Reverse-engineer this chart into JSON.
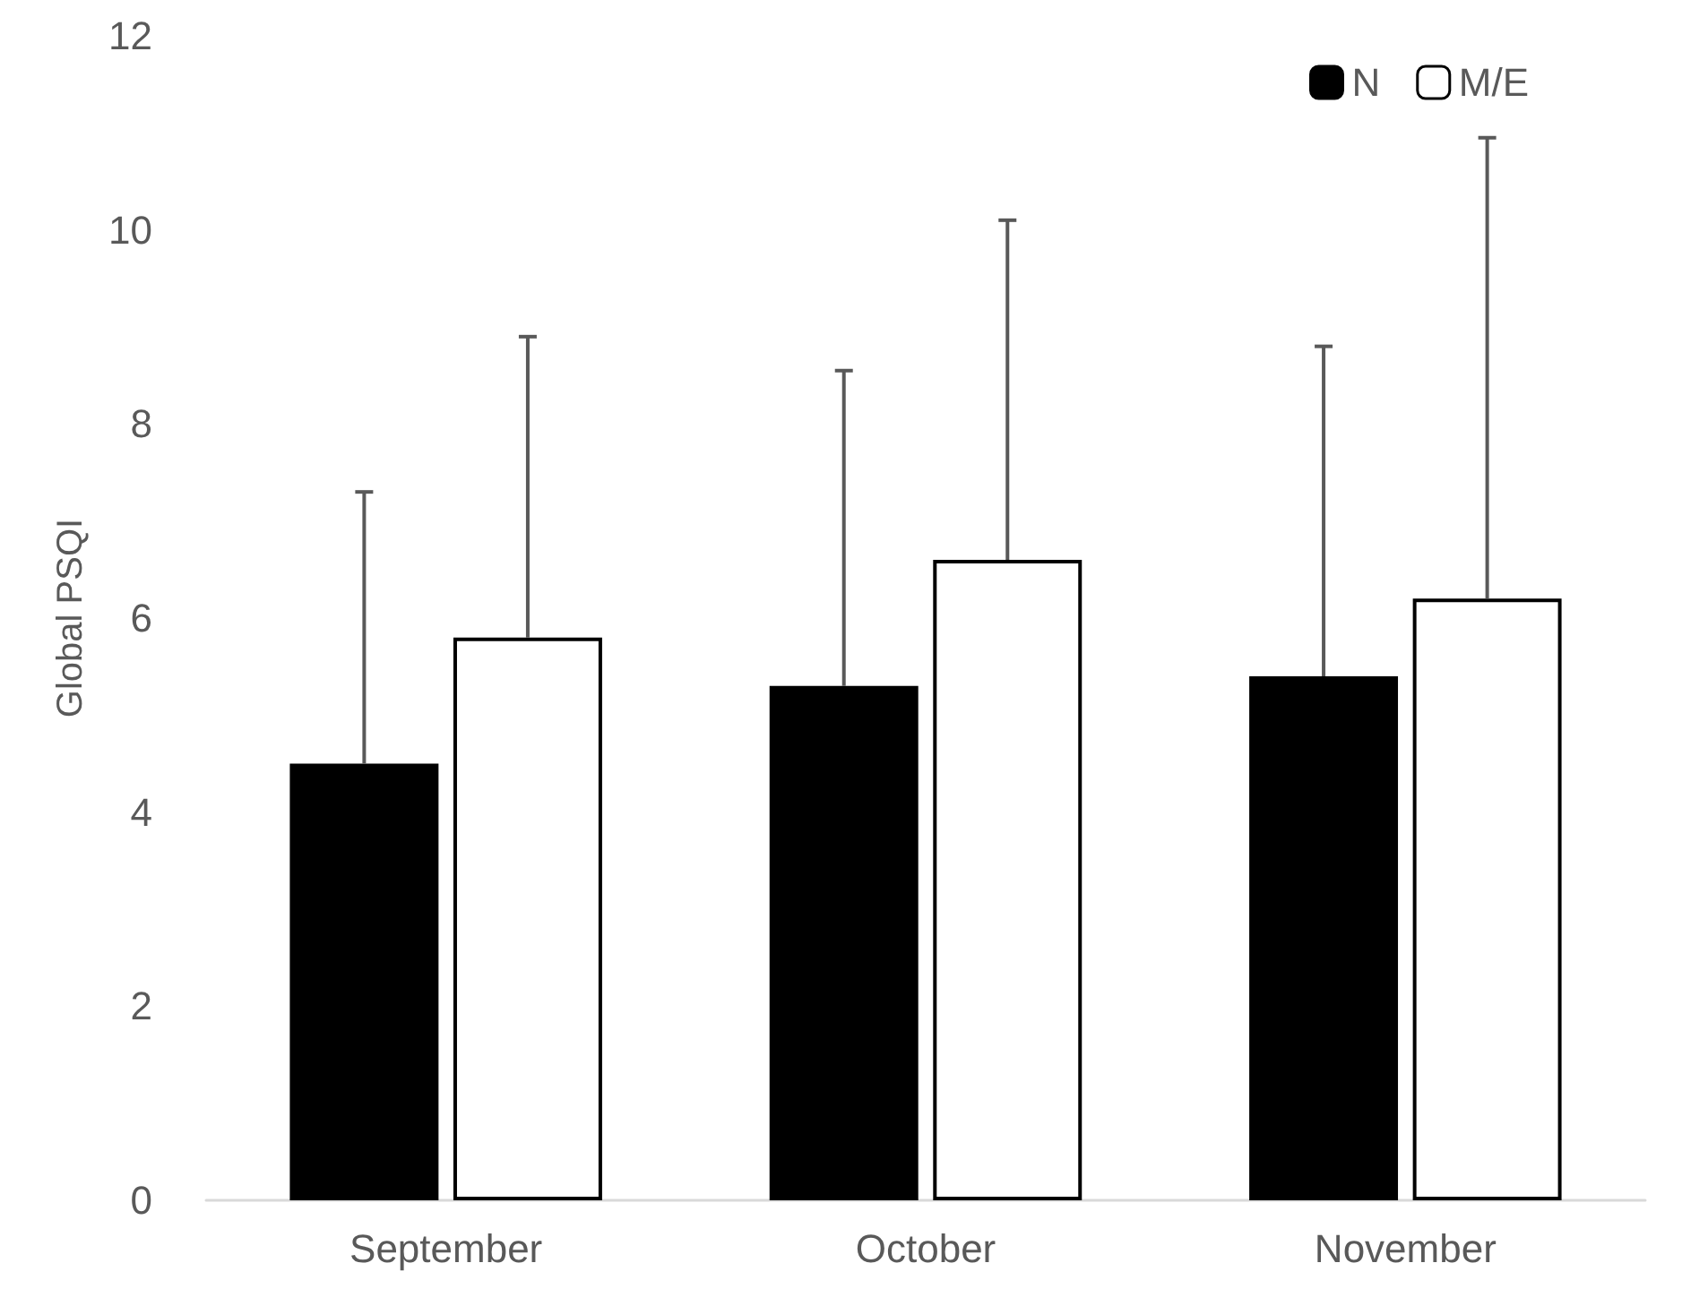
{
  "chart_data": {
    "type": "bar",
    "ylabel": "Global PSQI",
    "categories": [
      "September",
      "October",
      "November"
    ],
    "series": [
      {
        "name": "N",
        "color": "#000000",
        "values": [
          4.5,
          5.3,
          5.4
        ],
        "errors": [
          [
            4.5,
            7.3
          ],
          [
            5.3,
            8.55
          ],
          [
            5.4,
            8.8
          ]
        ]
      },
      {
        "name": "M/E",
        "color": "#ffffff",
        "values": [
          5.8,
          6.6,
          6.2
        ],
        "errors": [
          [
            5.8,
            8.9
          ],
          [
            6.6,
            10.1
          ],
          [
            6.2,
            10.95
          ]
        ]
      }
    ],
    "ylim": [
      0,
      12
    ],
    "yticks": [
      0,
      2,
      4,
      6,
      8,
      10,
      12
    ],
    "grid": false,
    "legend": "top right"
  }
}
